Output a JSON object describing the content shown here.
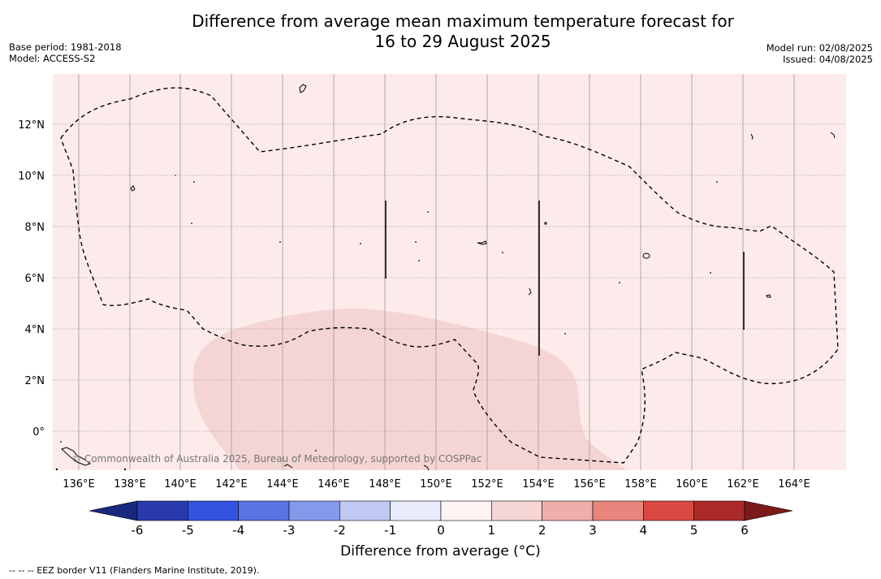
{
  "header": {
    "title_line1": "Difference from average mean maximum temperature forecast for",
    "title_line2": "16 to 29 August 2025",
    "base_period": "Base period: 1981-2018",
    "model": "Model: ACCESS-S2",
    "model_run": "Model run: 02/08/2025",
    "issued": "Issued: 04/08/2025"
  },
  "map": {
    "lon_ticks": [
      "136°E",
      "138°E",
      "140°E",
      "142°E",
      "144°E",
      "146°E",
      "148°E",
      "150°E",
      "152°E",
      "154°E",
      "156°E",
      "158°E",
      "160°E",
      "162°E",
      "164°E"
    ],
    "lat_ticks": [
      "12°N",
      "10°N",
      "8°N",
      "6°N",
      "4°N",
      "2°N",
      "0°"
    ],
    "background_color": "#fcebea",
    "anomaly_region_color": "#f5d5d4",
    "copyright": "© Commonwealth of Australia 2025, Bureau of Meteorology, supported by COSPPac"
  },
  "colorbar": {
    "ticks": [
      "-6",
      "-5",
      "-4",
      "-3",
      "-2",
      "-1",
      "0",
      "1",
      "2",
      "3",
      "4",
      "5",
      "6"
    ],
    "colors": [
      "#2a3aad",
      "#3353e0",
      "#5a73e5",
      "#8499ea",
      "#c0c8f3",
      "#eaecfb",
      "#fdf3f3",
      "#f6d6d5",
      "#efaea9",
      "#e8857d",
      "#d94942",
      "#a92a28"
    ],
    "under_color": "#18287f",
    "over_color": "#7a1a1a",
    "label": "Difference from average (°C)"
  },
  "footer": {
    "eez_note": "--  --  -- EEZ border V11 (Flanders Marine Institute, 2019)."
  }
}
